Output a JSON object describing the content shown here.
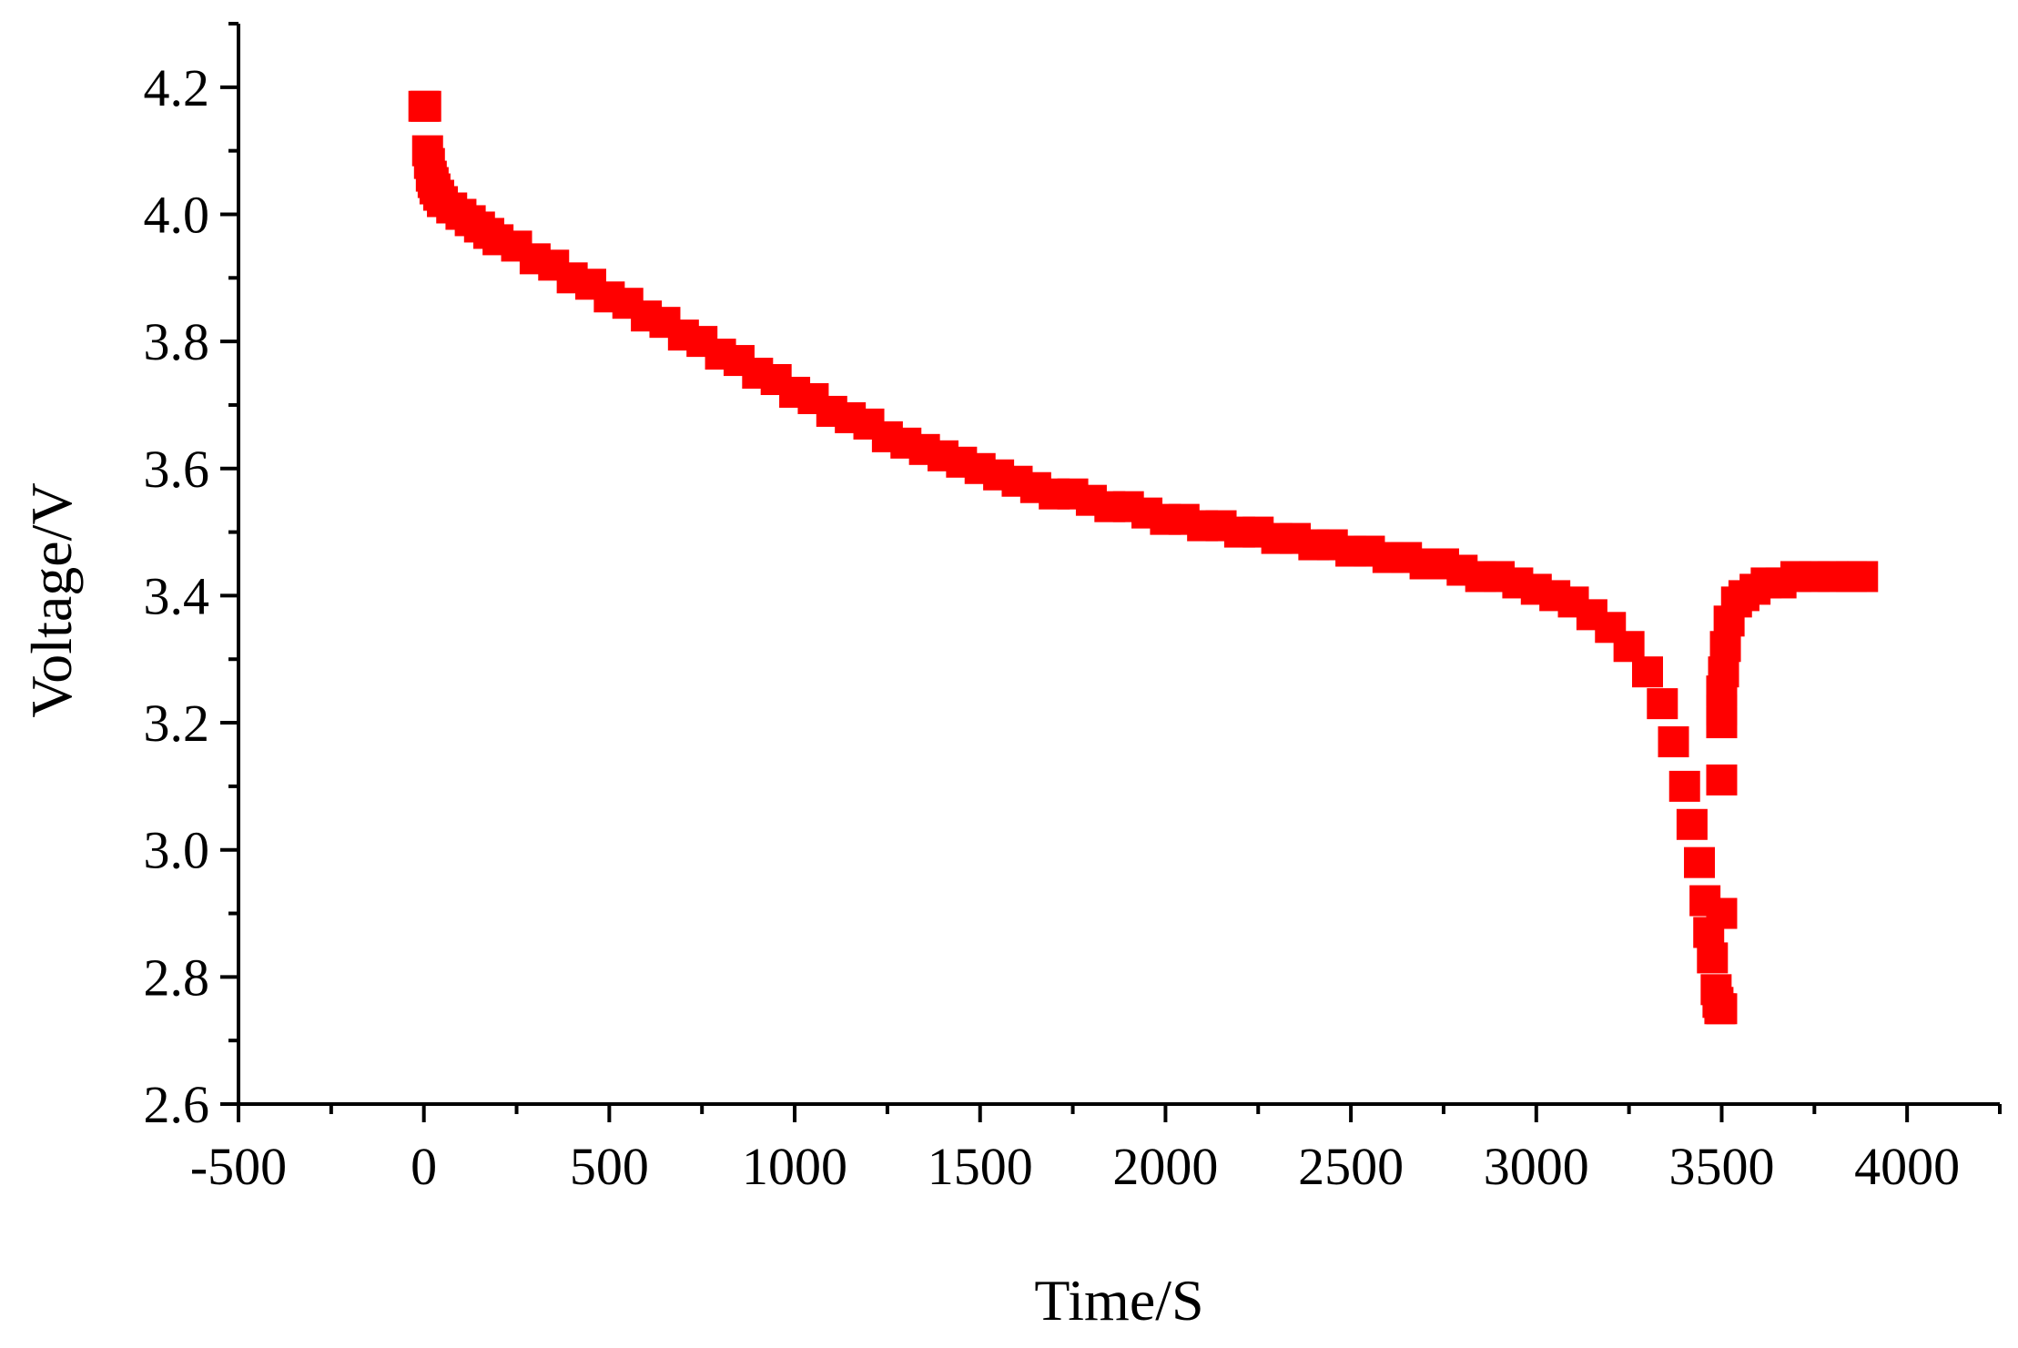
{
  "chart_data": {
    "type": "scatter",
    "title": "",
    "xlabel": "Time/S",
    "ylabel": "Voltage/V",
    "xlim": [
      -500,
      4250
    ],
    "ylim": [
      2.6,
      4.3
    ],
    "x_ticks": [
      -500,
      0,
      500,
      1000,
      1500,
      2000,
      2500,
      3000,
      3500,
      4000
    ],
    "x_tick_labels": [
      "-500",
      "0",
      "500",
      "1000",
      "1500",
      "2000",
      "2500",
      "3000",
      "3500",
      "4000"
    ],
    "y_ticks": [
      2.6,
      2.8,
      3.0,
      3.2,
      3.4,
      3.6,
      3.8,
      4.0,
      4.2
    ],
    "y_tick_labels": [
      "2.6",
      "2.8",
      "3.0",
      "3.2",
      "3.4",
      "3.6",
      "3.8",
      "4.0",
      "4.2"
    ],
    "grid": false,
    "legend": "none",
    "marker": "square",
    "color": "#ff0000",
    "series": [
      {
        "x": [
          0,
          5,
          10,
          15,
          20,
          25,
          30,
          40,
          50,
          75,
          100,
          125,
          150,
          175,
          200,
          250,
          300,
          350,
          400,
          450,
          500,
          550,
          600,
          650,
          700,
          750,
          800,
          850,
          900,
          950,
          1000,
          1050,
          1100,
          1150,
          1200,
          1250,
          1300,
          1350,
          1400,
          1450,
          1500,
          1550,
          1600,
          1650,
          1700,
          1750,
          1800,
          1850,
          1900,
          1950,
          2000,
          2050,
          2100,
          2150,
          2200,
          2250,
          2300,
          2350,
          2400,
          2450,
          2500,
          2550,
          2600,
          2650,
          2700,
          2750,
          2800,
          2850,
          2900,
          2950,
          3000,
          3050,
          3100,
          3150,
          3200,
          3250,
          3300,
          3340,
          3370,
          3400,
          3420,
          3440,
          3455,
          3465,
          3475,
          3485,
          3490,
          3495,
          3500,
          3500,
          3500,
          3500,
          3500,
          3500,
          3505,
          3510,
          3520,
          3540,
          3560,
          3590,
          3620,
          3660,
          3700,
          3750,
          3800,
          3850,
          3880
        ],
        "y": [
          4.17,
          4.17,
          4.1,
          4.08,
          4.06,
          4.05,
          4.04,
          4.03,
          4.02,
          4.01,
          4.0,
          3.99,
          3.98,
          3.97,
          3.96,
          3.95,
          3.93,
          3.92,
          3.9,
          3.89,
          3.87,
          3.86,
          3.84,
          3.83,
          3.81,
          3.8,
          3.78,
          3.77,
          3.75,
          3.74,
          3.72,
          3.71,
          3.69,
          3.68,
          3.67,
          3.65,
          3.64,
          3.63,
          3.62,
          3.61,
          3.6,
          3.59,
          3.58,
          3.57,
          3.56,
          3.56,
          3.55,
          3.54,
          3.54,
          3.53,
          3.52,
          3.52,
          3.51,
          3.51,
          3.5,
          3.5,
          3.49,
          3.49,
          3.48,
          3.48,
          3.47,
          3.47,
          3.46,
          3.46,
          3.45,
          3.45,
          3.44,
          3.43,
          3.43,
          3.42,
          3.41,
          3.4,
          3.39,
          3.37,
          3.35,
          3.32,
          3.28,
          3.23,
          3.17,
          3.1,
          3.04,
          2.98,
          2.92,
          2.87,
          2.83,
          2.78,
          2.76,
          2.75,
          2.75,
          2.9,
          3.11,
          3.2,
          3.22,
          3.25,
          3.28,
          3.32,
          3.36,
          3.39,
          3.4,
          3.41,
          3.42,
          3.42,
          3.43,
          3.43,
          3.43,
          3.43,
          3.43
        ]
      }
    ]
  }
}
